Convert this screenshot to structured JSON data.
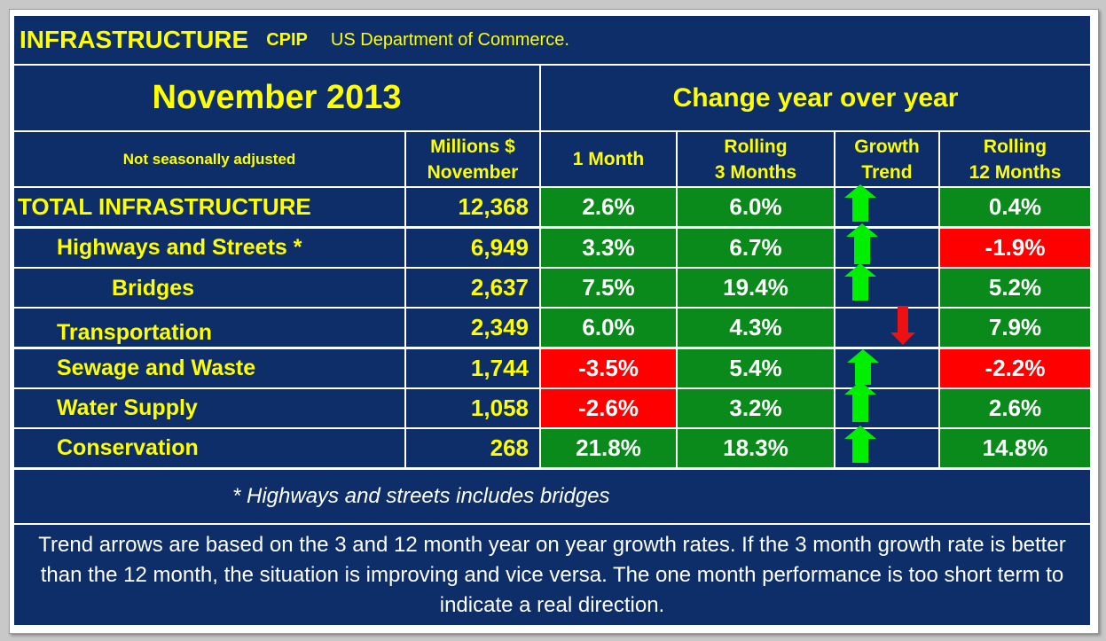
{
  "title": {
    "main": "INFRASTRUCTURE",
    "code": "CPIP",
    "source": "US Department of Commerce."
  },
  "period": "November 2013",
  "change_header": "Change year over year",
  "columns": {
    "adjustment": "Not seasonally adjusted",
    "millions_line1": "Millions $",
    "millions_line2": "November",
    "one_month": "1 Month",
    "rolling3_line1": "Rolling",
    "rolling3_line2": "3 Months",
    "trend_line1": "Growth",
    "trend_line2": "Trend",
    "rolling12_line1": "Rolling",
    "rolling12_line2": "12 Months"
  },
  "rows": [
    {
      "label": "TOTAL INFRASTRUCTURE",
      "millions": "12,368",
      "one_month": "2.6%",
      "rolling3": "6.0%",
      "trend": "up",
      "rolling12": "0.4%"
    },
    {
      "label": "Highways and Streets *",
      "millions": "6,949",
      "one_month": "3.3%",
      "rolling3": "6.7%",
      "trend": "up",
      "rolling12": "-1.9%"
    },
    {
      "label": "Bridges",
      "millions": "2,637",
      "one_month": "7.5%",
      "rolling3": "19.4%",
      "trend": "up",
      "rolling12": "5.2%"
    },
    {
      "label": "Transportation",
      "millions": "2,349",
      "one_month": "6.0%",
      "rolling3": "4.3%",
      "trend": "down",
      "rolling12": "7.9%"
    },
    {
      "label": "Sewage and Waste",
      "millions": "1,744",
      "one_month": "-3.5%",
      "rolling3": "5.4%",
      "trend": "up",
      "rolling12": "-2.2%"
    },
    {
      "label": "Water Supply",
      "millions": "1,058",
      "one_month": "-2.6%",
      "rolling3": "3.2%",
      "trend": "up",
      "rolling12": "2.6%"
    },
    {
      "label": "Conservation",
      "millions": "268",
      "one_month": "21.8%",
      "rolling3": "18.3%",
      "trend": "up",
      "rolling12": "14.8%"
    }
  ],
  "footnote": "* Highways and streets includes bridges",
  "explanation": "Trend arrows are based on the 3 and 12 month year on year growth rates. If the 3 month growth rate is better than the 12 month, the situation is improving and vice versa. The one month performance is too short term to indicate a real direction.",
  "colors": {
    "navy": "#0d2e69",
    "positive": "#0a8a1a",
    "negative": "#ff0000",
    "label": "#ffff00",
    "arrow_up": "#00ee00",
    "arrow_down": "#ee1111"
  }
}
